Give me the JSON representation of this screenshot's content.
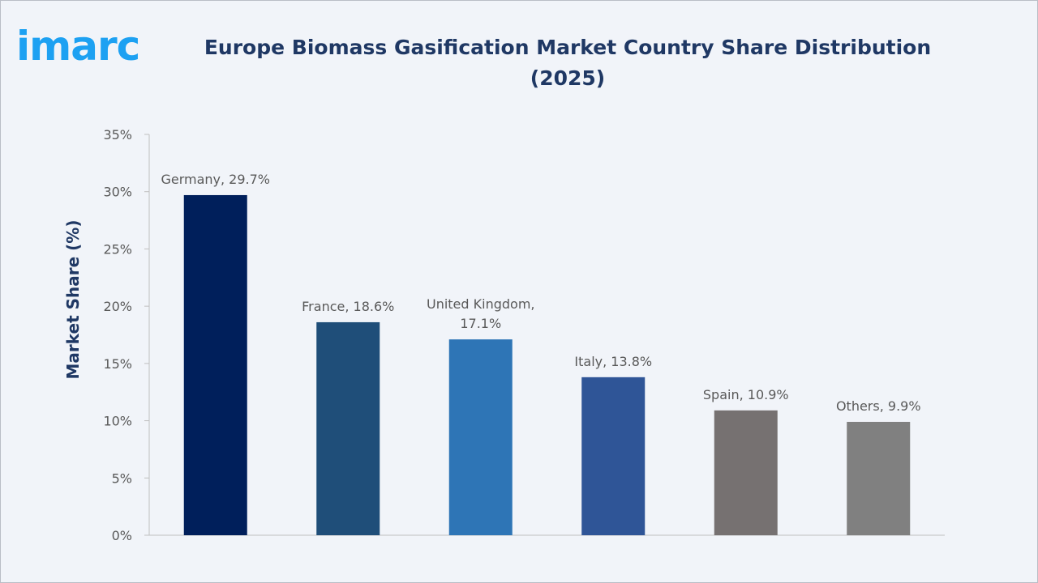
{
  "logo": {
    "text": "imarc",
    "color": "#1da1f2"
  },
  "chart_data": {
    "type": "bar",
    "title": "Europe Biomass Gasification Market Country Share Distribution (2025)",
    "title_lines": [
      "Europe Biomass Gasification Market Country Share Distribution",
      "(2025)"
    ],
    "ylabel": "Market Share (%)",
    "xlabel": "",
    "ylim": [
      0,
      35
    ],
    "y_ticks": [
      0,
      5,
      10,
      15,
      20,
      25,
      30,
      35
    ],
    "y_tick_labels": [
      "0%",
      "5%",
      "10%",
      "15%",
      "20%",
      "25%",
      "30%",
      "35%"
    ],
    "grid": false,
    "categories": [
      "Germany",
      "France",
      "United Kingdom",
      "Italy",
      "Spain",
      "Others"
    ],
    "values": [
      29.7,
      18.6,
      17.1,
      13.8,
      10.9,
      9.9
    ],
    "data_labels": [
      [
        "Germany, 29.7%"
      ],
      [
        "France, 18.6%"
      ],
      [
        "United Kingdom,",
        "17.1%"
      ],
      [
        "Italy, 13.8%"
      ],
      [
        "Spain, 10.9%"
      ],
      [
        "Others, 9.9%"
      ]
    ],
    "colors": [
      "#001f5b",
      "#1f4e79",
      "#2e75b6",
      "#2f5597",
      "#767171",
      "#808080"
    ]
  }
}
